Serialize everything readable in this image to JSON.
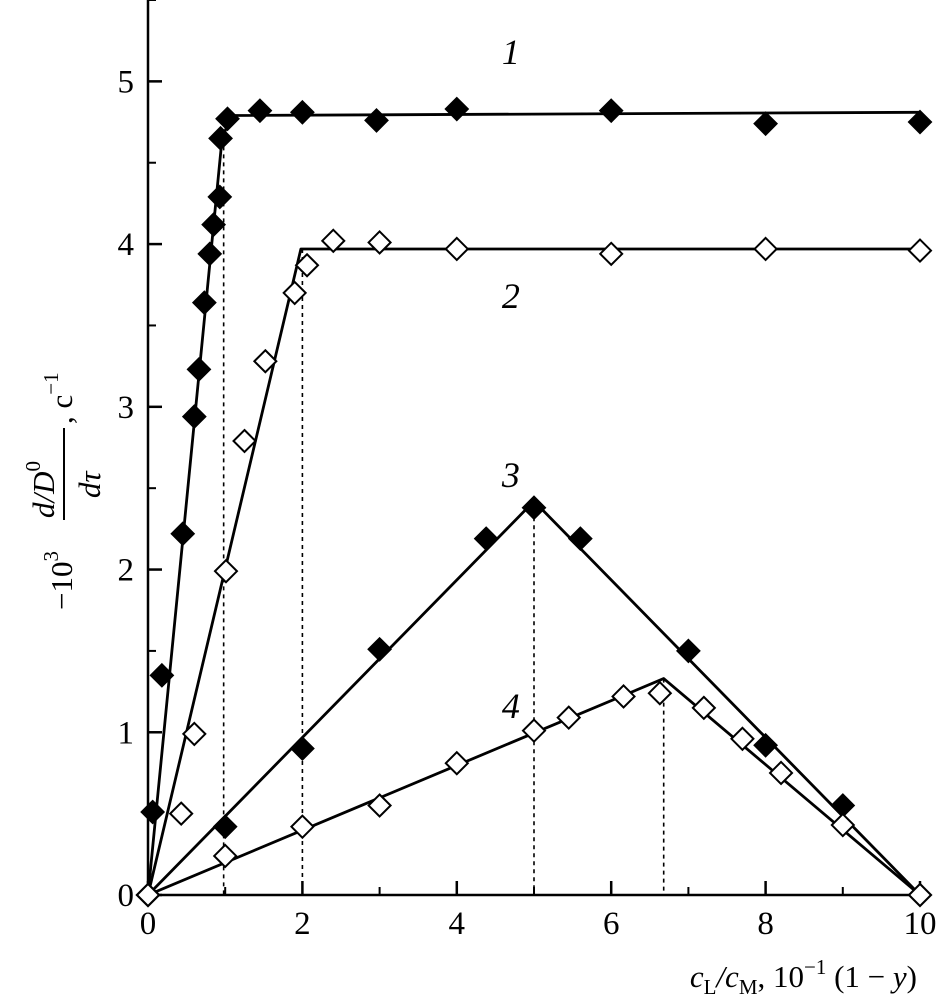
{
  "chart_data": {
    "type": "scatter",
    "title": "",
    "xlabel": {
      "parts": [
        {
          "text": "c",
          "italic": true
        },
        {
          "text": "L",
          "sub": true
        },
        {
          "text": "/",
          "italic": true
        },
        {
          "text": "c",
          "italic": true
        },
        {
          "text": "M",
          "sub": true
        },
        {
          "text": ", 10"
        },
        {
          "text": "−1",
          "sup": true
        },
        {
          "text": " (1 − "
        },
        {
          "text": "y",
          "italic": true
        },
        {
          "text": ")"
        }
      ]
    },
    "ylabel": {
      "prefix": "−10",
      "prefix_sup": "3",
      "numerator": "d/D",
      "numerator_sup": "0",
      "denominator": "dτ",
      "unit": ", c",
      "unit_sup": "−1"
    },
    "xlim": [
      0,
      10
    ],
    "ylim": [
      0,
      5.5
    ],
    "xticks": [
      0,
      2,
      4,
      6,
      8,
      10
    ],
    "xtick_labels": [
      "0",
      "2",
      "4",
      "6",
      "8",
      "10"
    ],
    "yticks": [
      0,
      1,
      2,
      3,
      4,
      5
    ],
    "ytick_labels": [
      "0",
      "1",
      "2",
      "3",
      "4",
      "5"
    ],
    "grid": false,
    "legend": "none",
    "series": [
      {
        "label": "1",
        "marker": "filled-diamond",
        "points": [
          [
            0,
            0
          ],
          [
            0.06,
            0.51
          ],
          [
            0.18,
            1.35
          ],
          [
            0.45,
            2.22
          ],
          [
            0.6,
            2.94
          ],
          [
            0.66,
            3.23
          ],
          [
            0.73,
            3.64
          ],
          [
            0.8,
            3.94
          ],
          [
            0.85,
            4.12
          ],
          [
            0.93,
            4.29
          ],
          [
            0.94,
            4.65
          ],
          [
            1.03,
            4.77
          ],
          [
            1.45,
            4.82
          ],
          [
            2.0,
            4.81
          ],
          [
            2.96,
            4.76
          ],
          [
            4.0,
            4.83
          ],
          [
            6.0,
            4.82
          ],
          [
            8.0,
            4.74
          ],
          [
            10.0,
            4.75
          ]
        ],
        "fit": [
          [
            0,
            0
          ],
          [
            0.96,
            4.65
          ],
          [
            1.08,
            4.79
          ],
          [
            10.0,
            4.81
          ]
        ],
        "breakpoint": 0.98,
        "label_pos": [
          4.7,
          5.18
        ]
      },
      {
        "label": "2",
        "marker": "open-diamond",
        "points": [
          [
            0,
            0
          ],
          [
            0.43,
            0.5
          ],
          [
            0.6,
            0.99
          ],
          [
            1.01,
            1.99
          ],
          [
            1.25,
            2.79
          ],
          [
            1.52,
            3.28
          ],
          [
            1.9,
            3.7
          ],
          [
            2.06,
            3.87
          ],
          [
            2.4,
            4.02
          ],
          [
            3.0,
            4.01
          ],
          [
            4.0,
            3.97
          ],
          [
            6.0,
            3.94
          ],
          [
            8.0,
            3.97
          ],
          [
            10.0,
            3.96
          ]
        ],
        "fit": [
          [
            0,
            0
          ],
          [
            1.98,
            3.97
          ],
          [
            10.0,
            3.97
          ]
        ],
        "breakpoint": 2.0,
        "label_pos": [
          4.7,
          3.68
        ]
      },
      {
        "label": "3",
        "marker": "filled-diamond",
        "points": [
          [
            0,
            0
          ],
          [
            1.0,
            0.42
          ],
          [
            2.0,
            0.9
          ],
          [
            3.0,
            1.51
          ],
          [
            4.38,
            2.19
          ],
          [
            5.0,
            2.38
          ],
          [
            5.6,
            2.19
          ],
          [
            7.0,
            1.5
          ],
          [
            8.0,
            0.92
          ],
          [
            9.0,
            0.55
          ],
          [
            10.0,
            0.0
          ]
        ],
        "fit": [
          [
            0,
            0
          ],
          [
            5.0,
            2.42
          ],
          [
            10.0,
            0
          ]
        ],
        "breakpoint": 5.0,
        "label_pos": [
          4.7,
          2.58
        ]
      },
      {
        "label": "4",
        "marker": "open-diamond",
        "points": [
          [
            0,
            0
          ],
          [
            1.0,
            0.24
          ],
          [
            2.0,
            0.42
          ],
          [
            3.0,
            0.55
          ],
          [
            4.0,
            0.81
          ],
          [
            5.0,
            1.01
          ],
          [
            5.45,
            1.09
          ],
          [
            6.16,
            1.22
          ],
          [
            6.63,
            1.24
          ],
          [
            7.2,
            1.15
          ],
          [
            7.7,
            0.96
          ],
          [
            8.2,
            0.75
          ],
          [
            9.0,
            0.43
          ],
          [
            10.0,
            0.0
          ]
        ],
        "fit": [
          [
            0,
            0
          ],
          [
            6.68,
            1.33
          ],
          [
            10.0,
            0
          ]
        ],
        "breakpoint": 6.68,
        "label_pos": [
          4.7,
          1.16
        ]
      }
    ]
  }
}
